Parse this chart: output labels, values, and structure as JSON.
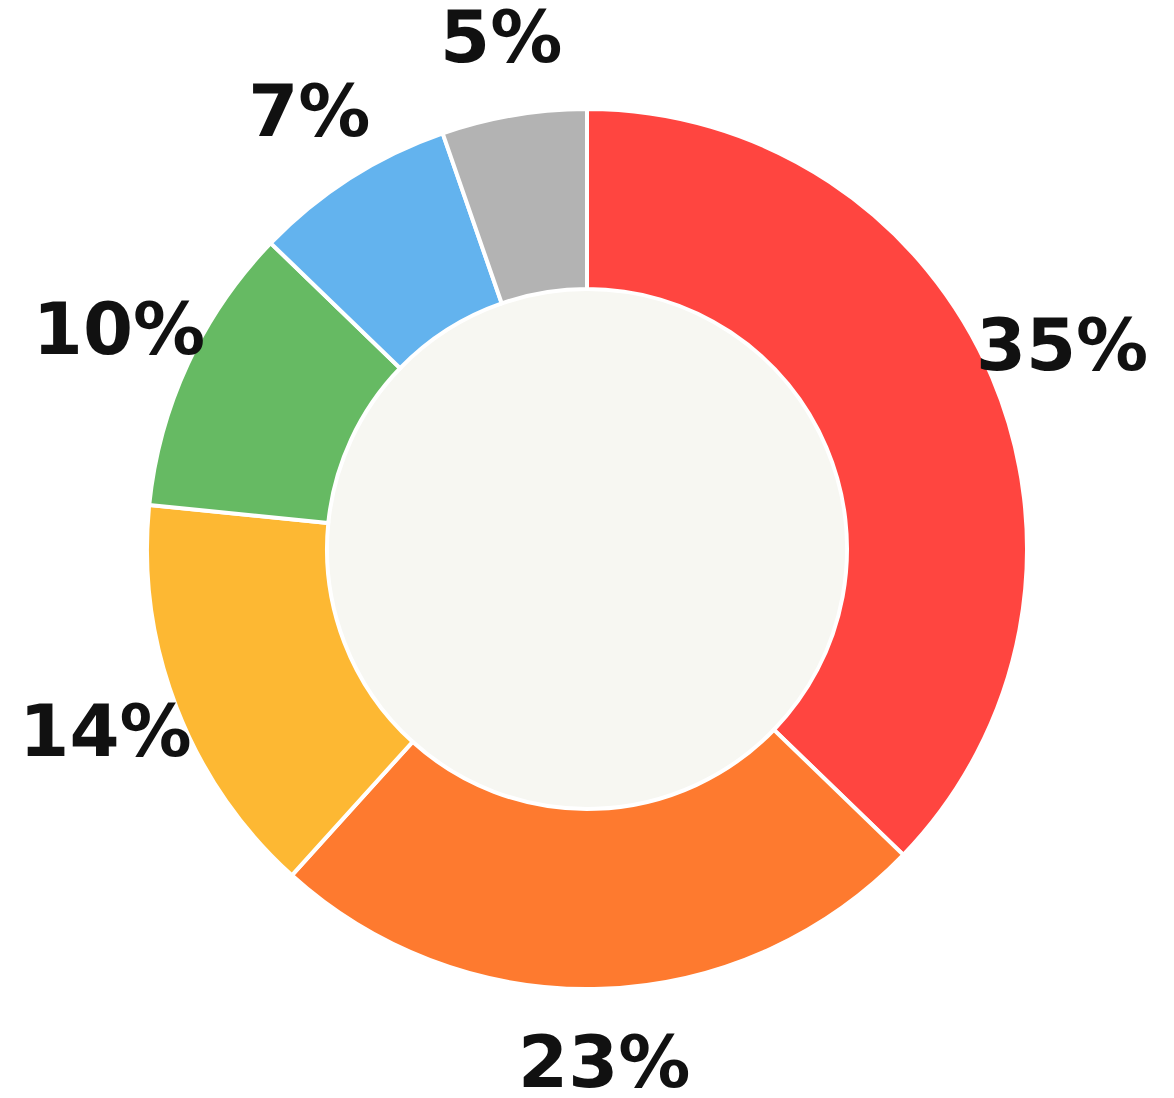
{
  "chart_data": {
    "type": "donut",
    "categories": [
      null,
      null,
      null,
      null,
      null,
      null
    ],
    "values": [
      35,
      23,
      14,
      10,
      7,
      5
    ],
    "value_labels": [
      "35%",
      "23%",
      "14%",
      "10%",
      "7%",
      "5%"
    ],
    "colors": [
      "#ff4540",
      "#fe7a2f",
      "#fdb833",
      "#66ba63",
      "#63b3ee",
      "#b3b3b3"
    ]
  }
}
